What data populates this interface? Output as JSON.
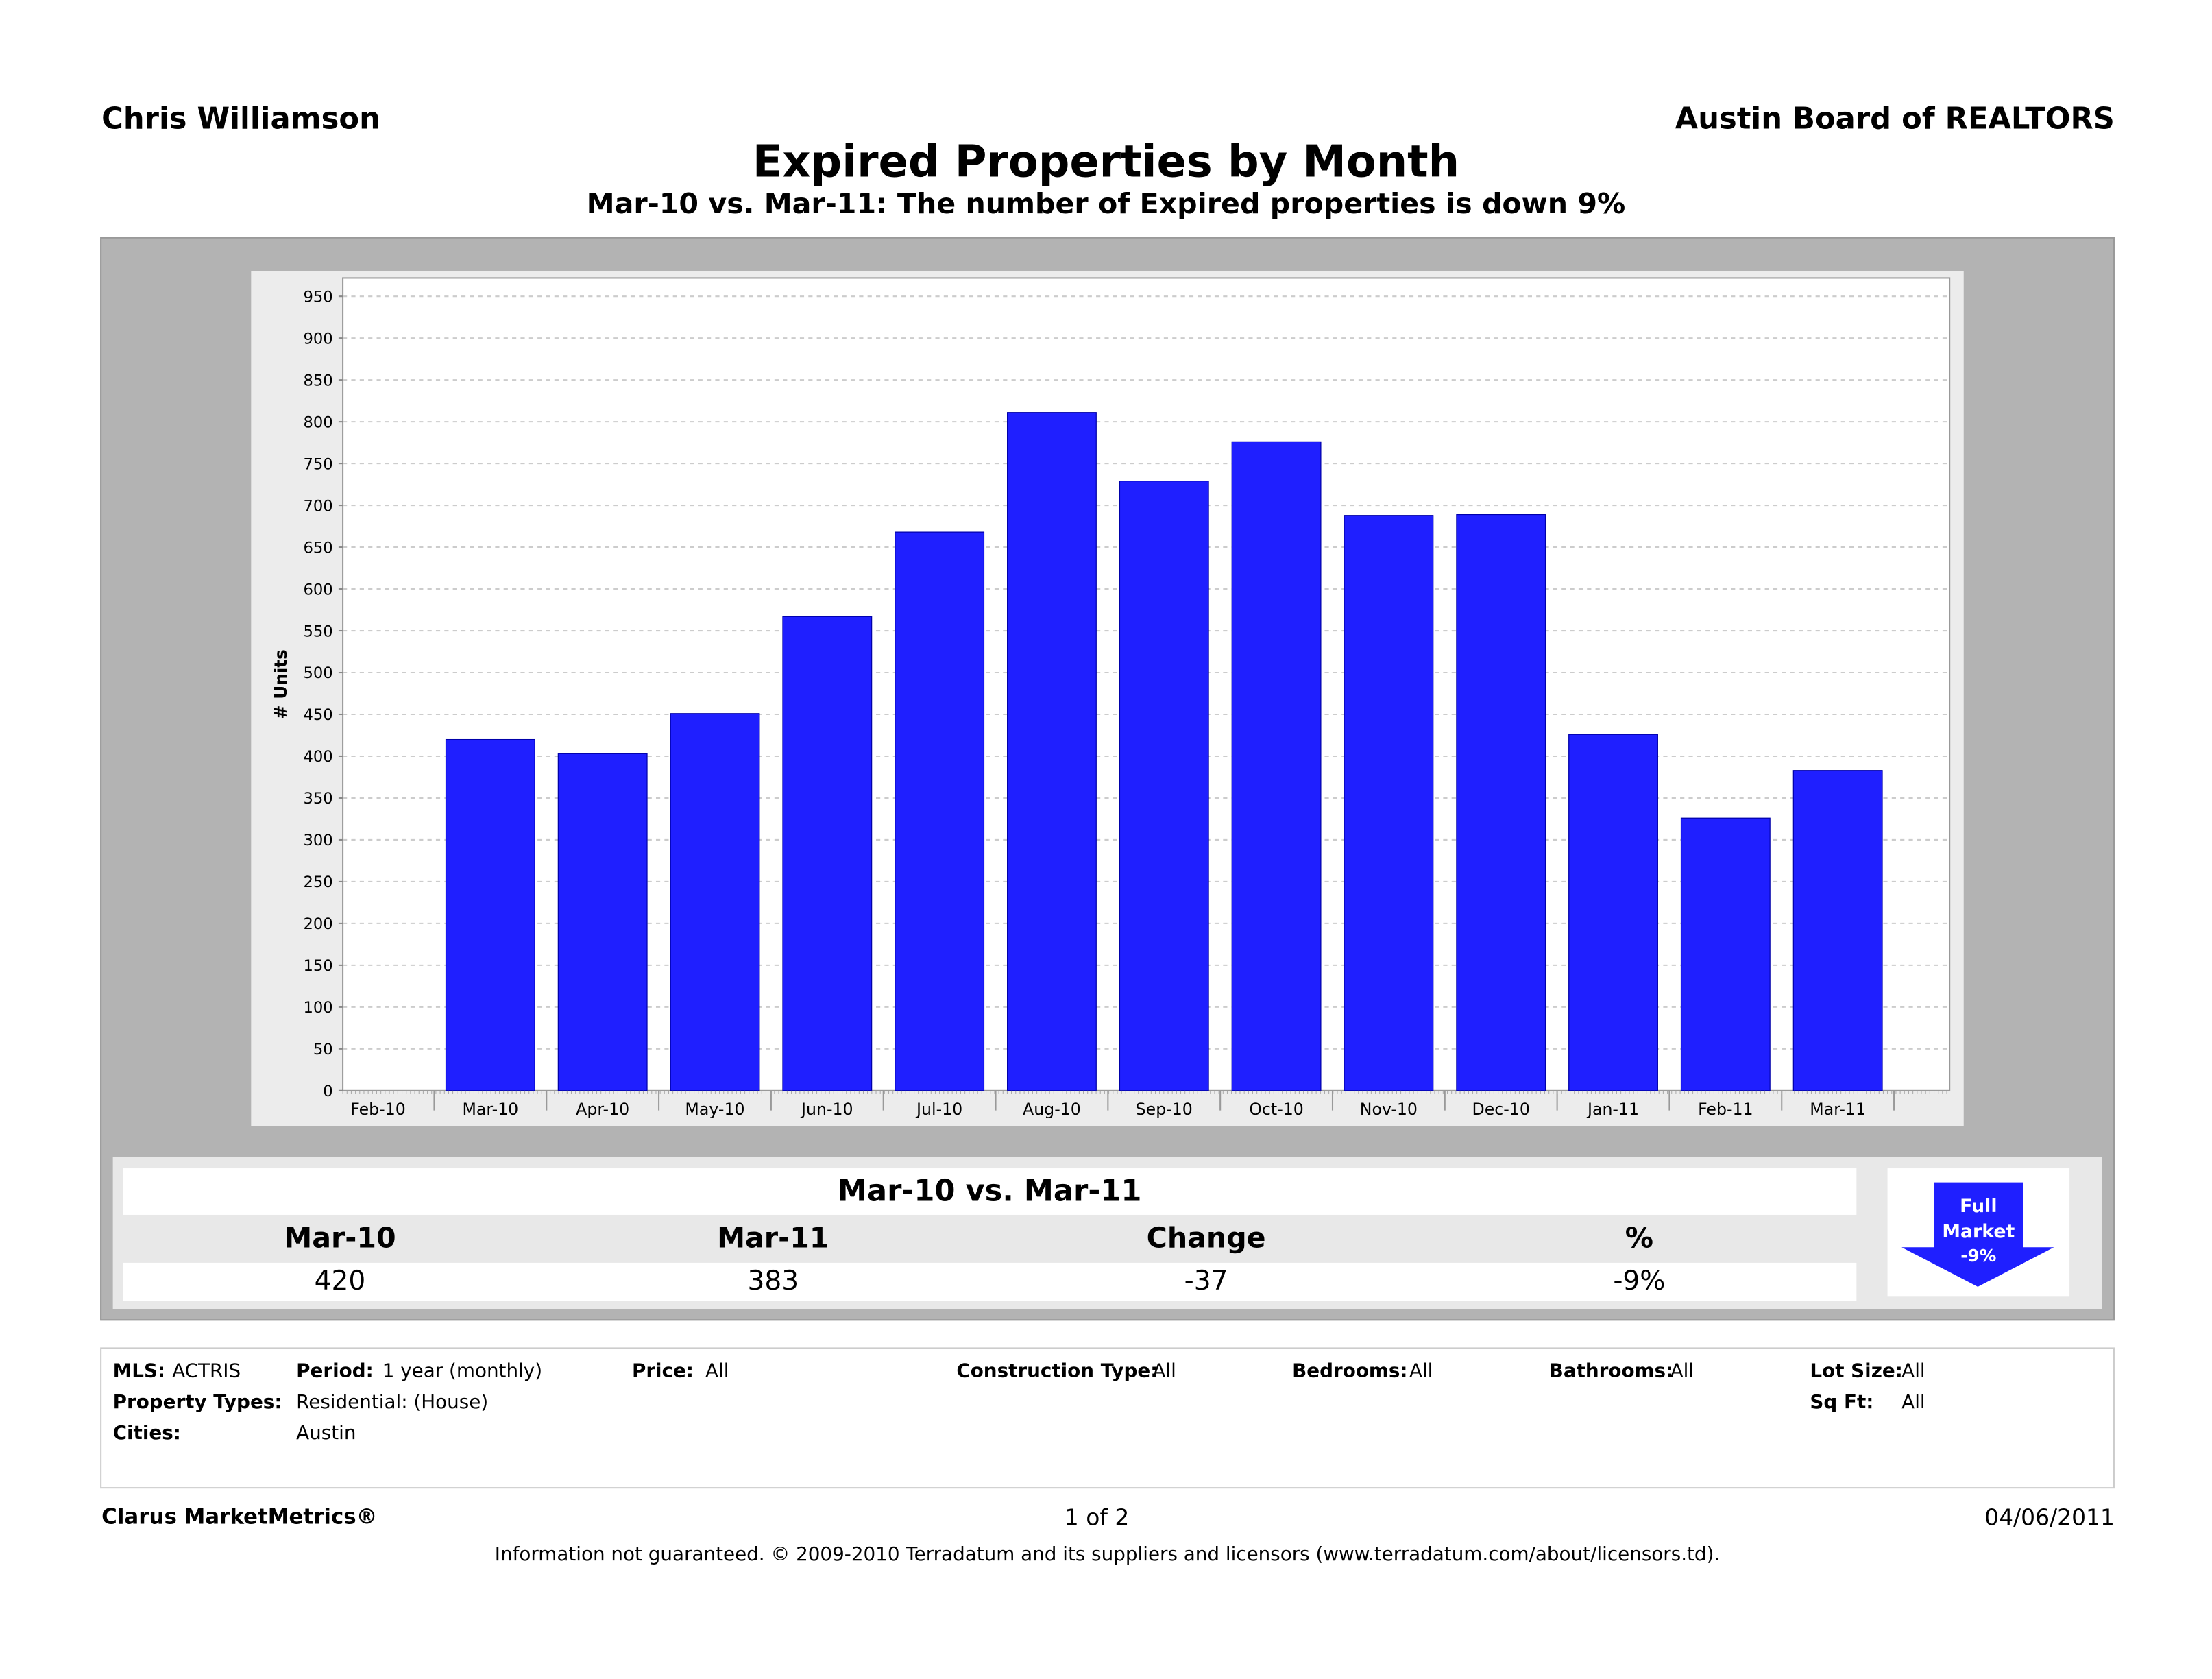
{
  "header": {
    "agent": "Chris Williamson",
    "board": "Austin Board of REALTORS",
    "title": "Expired Properties by Month",
    "subtitle": "Mar-10 vs. Mar-11: The number of Expired properties is down 9%"
  },
  "chart_data": {
    "type": "bar",
    "title": "Expired Properties by Month",
    "xlabel": "",
    "ylabel": "# Units",
    "ylim": [
      0,
      950
    ],
    "yticks": [
      0,
      50,
      100,
      150,
      200,
      250,
      300,
      350,
      400,
      450,
      500,
      550,
      600,
      650,
      700,
      750,
      800,
      850,
      900,
      950
    ],
    "categories": [
      "Feb-10",
      "Mar-10",
      "Apr-10",
      "May-10",
      "Jun-10",
      "Jul-10",
      "Aug-10",
      "Sep-10",
      "Oct-10",
      "Nov-10",
      "Dec-10",
      "Jan-11",
      "Feb-11",
      "Mar-11"
    ],
    "values": [
      null,
      420,
      403,
      451,
      567,
      668,
      811,
      729,
      776,
      688,
      689,
      426,
      326,
      383
    ],
    "grid": true,
    "bar_color": "#1f1fff"
  },
  "summary": {
    "title": "Mar-10 vs. Mar-11",
    "headers": [
      "Mar-10",
      "Mar-11",
      "Change",
      "%"
    ],
    "values": [
      "420",
      "383",
      "-37",
      "-9%"
    ],
    "badge": {
      "line1": "Full",
      "line2": "Market",
      "line3": "-9%",
      "color": "#1f1fff"
    }
  },
  "filters": {
    "mls_label": "MLS:",
    "mls": "ACTRIS",
    "period_label": "Period:",
    "period": "1 year (monthly)",
    "price_label": "Price:",
    "price": "All",
    "construction_label": "Construction Type:",
    "construction": "All",
    "bedrooms_label": "Bedrooms:",
    "bedrooms": "All",
    "bathrooms_label": "Bathrooms:",
    "bathrooms": "All",
    "lot_label": "Lot Size:",
    "lot": "All",
    "ptypes_label": "Property Types:",
    "ptypes": "Residential: (House)",
    "sqft_label": "Sq Ft:",
    "sqft": "All",
    "cities_label": "Cities:",
    "cities": "Austin"
  },
  "footer": {
    "brand": "Clarus MarketMetrics®",
    "page": "1 of 2",
    "date": "04/06/2011",
    "disclaimer": "Information not guaranteed.  © 2009-2010 Terradatum and its suppliers and licensors (www.terradatum.com/about/licensors.td)."
  }
}
